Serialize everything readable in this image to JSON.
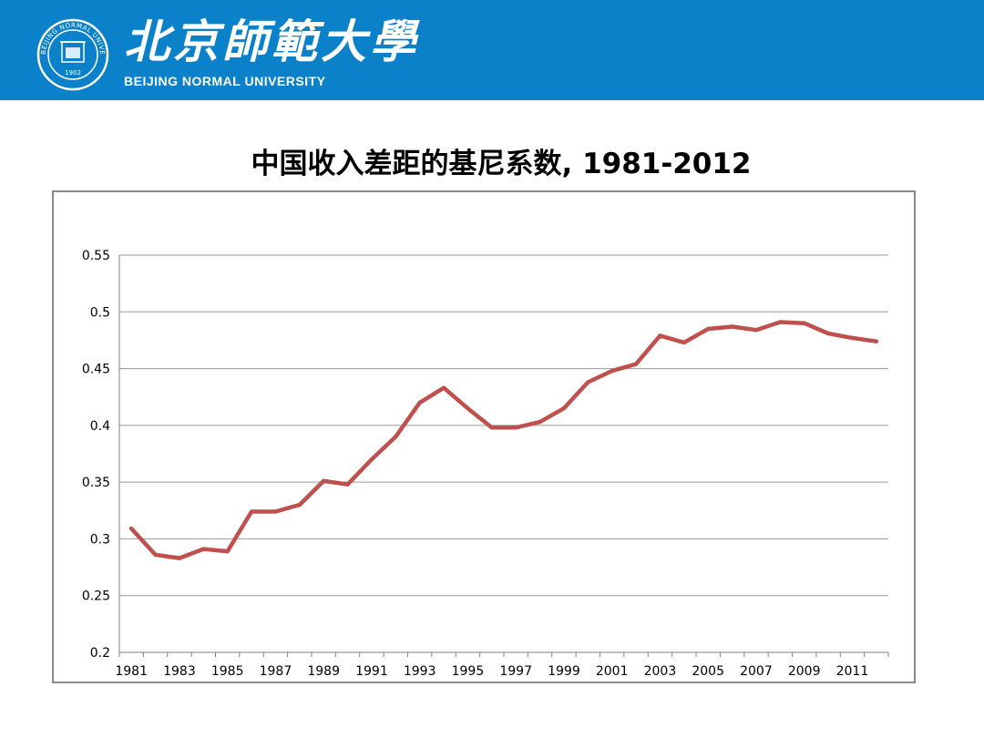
{
  "header": {
    "brand_cn": "北京師範大學",
    "brand_en": "BEIJING NORMAL UNIVERSITY",
    "seal_top_text": "BEIJING NORMAL UNIVERSITY",
    "seal_year": "1902",
    "brand_color": "#0a81c9"
  },
  "chart_data": {
    "type": "line",
    "title": "中国收入差距的基尼系数, 1981-2012",
    "xlabel": "",
    "ylabel": "",
    "ylim": [
      0.2,
      0.55
    ],
    "yticks": [
      0.2,
      0.25,
      0.3,
      0.35,
      0.4,
      0.45,
      0.5,
      0.55
    ],
    "ytick_labels": [
      "0.2",
      "0.25",
      "0.3",
      "0.35",
      "0.4",
      "0.45",
      "0.5",
      "0.55"
    ],
    "xticks": [
      "1981",
      "1983",
      "1985",
      "1987",
      "1989",
      "1991",
      "1993",
      "1995",
      "1997",
      "1999",
      "2001",
      "2003",
      "2005",
      "2007",
      "2009",
      "2011"
    ],
    "grid": true,
    "legend": "none",
    "line_color": "#c0504d",
    "series": [
      {
        "x": [
          1981,
          1982,
          1983,
          1984,
          1985,
          1986,
          1987,
          1988,
          1989,
          1990,
          1991,
          1992,
          1993,
          1994,
          1995,
          1996,
          1997,
          1998,
          1999,
          2000,
          2001,
          2002,
          2003,
          2004,
          2005,
          2006,
          2007,
          2008,
          2009,
          2010,
          2011,
          2012
        ],
        "values": [
          0.309,
          0.286,
          0.283,
          0.291,
          0.289,
          0.324,
          0.324,
          0.33,
          0.351,
          0.348,
          0.37,
          0.39,
          0.42,
          0.433,
          0.415,
          0.398,
          0.398,
          0.403,
          0.415,
          0.438,
          0.448,
          0.454,
          0.479,
          0.473,
          0.485,
          0.487,
          0.484,
          0.491,
          0.49,
          0.481,
          0.477,
          0.474
        ]
      }
    ]
  }
}
